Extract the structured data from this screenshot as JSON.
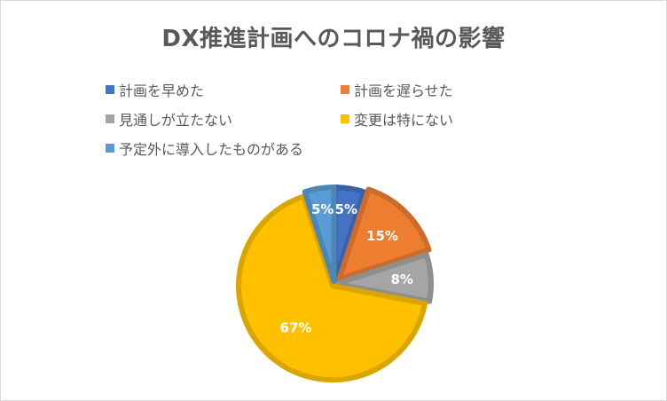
{
  "chart_data": {
    "type": "pie",
    "title": "DX推進計画へのコロナ禍の影響",
    "legend_position": "top",
    "slices": [
      {
        "label": "計画を早めた",
        "value": 5,
        "display": "5%",
        "color": "#4472c4"
      },
      {
        "label": "計画を遅らせた",
        "value": 15,
        "display": "15%",
        "color": "#ed7d31"
      },
      {
        "label": "見通しが立たない",
        "value": 8,
        "display": "8%",
        "color": "#a5a5a5"
      },
      {
        "label": "変更は特にない",
        "value": 67,
        "display": "67%",
        "color": "#ffc000"
      },
      {
        "label": "予定外に導入したものがある",
        "value": 5,
        "display": "5%",
        "color": "#5b9bd5"
      }
    ]
  }
}
